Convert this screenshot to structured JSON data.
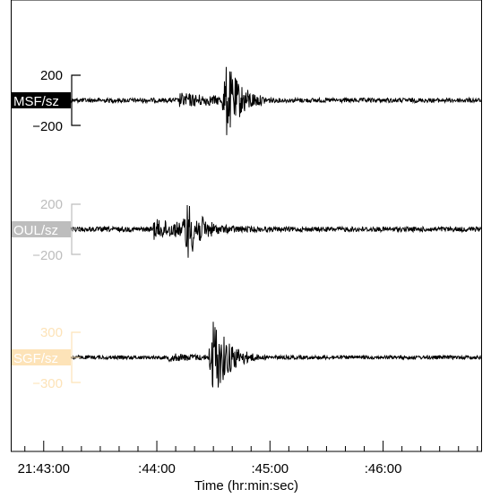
{
  "chart_data": {
    "type": "line",
    "xlabel": "Time (hr:min:sec)",
    "x_tick_labels": [
      "21:43:00",
      ":44:00",
      ":45:00",
      ":46:00"
    ],
    "x_tick_seconds": [
      0,
      60,
      120,
      180
    ],
    "xlim": [
      -17,
      232
    ],
    "minor_tick_step_seconds": 10,
    "series": [
      {
        "name": "MSF/sz",
        "scale_labels": [
          "200",
          "−200"
        ],
        "scale_value": 200,
        "label_bg": "#000000",
        "scale_color": "#000000",
        "onset_s": 72,
        "peak_s": 97,
        "peak_amplitude": 340,
        "background_amplitude": 20,
        "onset_amplitude": 70
      },
      {
        "name": "OUL/sz",
        "scale_labels": [
          "200",
          "−200"
        ],
        "scale_value": 200,
        "label_bg": "#bdbdbd",
        "scale_color": "#bdbdbd",
        "onset_s": 58,
        "peak_s": 76,
        "peak_amplitude": 280,
        "background_amplitude": 22,
        "onset_amplitude": 95
      },
      {
        "name": "SGF/sz",
        "scale_labels": [
          "300",
          "−300"
        ],
        "scale_value": 300,
        "label_bg": "#fde3b8",
        "scale_color": "#fde3b8",
        "onset_s": 66,
        "peak_s": 90,
        "peak_amplitude": 560,
        "background_amplitude": 25,
        "onset_amplitude": 60
      }
    ],
    "grid": false,
    "legend": "left"
  }
}
